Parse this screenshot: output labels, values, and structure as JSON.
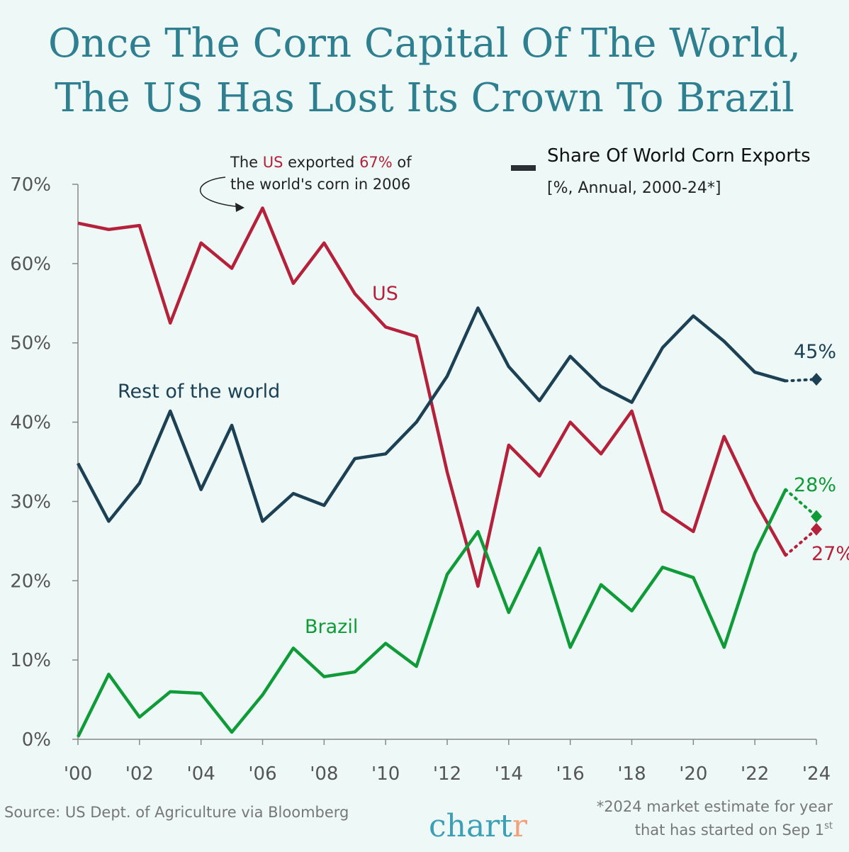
{
  "title_lines": [
    "Once The Corn Capital Of The World,",
    "The US Has Lost Its Crown To Brazil"
  ],
  "legend": {
    "title": "Share Of World Corn Exports",
    "subtitle": "[%, Annual, 2000-24*]"
  },
  "annotation": {
    "line1": [
      {
        "text": "The ",
        "color": "#222222"
      },
      {
        "text": "US",
        "color": "#b5213a"
      },
      {
        "text": " exported ",
        "color": "#222222"
      },
      {
        "text": "67%",
        "color": "#b5213a"
      },
      {
        "text": " of",
        "color": "#222222"
      }
    ],
    "line2": "the world's corn in 2006"
  },
  "footer": {
    "source": "Source: US Dept. of Agriculture via Bloomberg",
    "logo": "chartr",
    "note_line1": "*2024 market estimate for year",
    "note_line2": "that has started on Sep 1",
    "note_sup": "st"
  },
  "chart_data": {
    "type": "line",
    "title": "Share Of World Corn Exports",
    "ylim": [
      0,
      70
    ],
    "xlim": [
      2000,
      2024
    ],
    "grid": false,
    "y_ticks": [
      "0%",
      "10%",
      "20%",
      "30%",
      "40%",
      "50%",
      "60%",
      "70%"
    ],
    "x_ticks": [
      "'00",
      "'02",
      "'04",
      "'06",
      "'08",
      "'10",
      "'12",
      "'14",
      "'16",
      "'18",
      "'20",
      "'22",
      "'24"
    ],
    "x": [
      2000,
      2001,
      2002,
      2003,
      2004,
      2005,
      2006,
      2007,
      2008,
      2009,
      2010,
      2011,
      2012,
      2013,
      2014,
      2015,
      2016,
      2017,
      2018,
      2019,
      2020,
      2021,
      2022,
      2023,
      2024
    ],
    "estimate_year": 2024,
    "series": [
      {
        "name": "US",
        "color": "#b5213a",
        "end_label": "27%",
        "values": [
          65.1,
          64.3,
          64.8,
          52.5,
          62.6,
          59.4,
          67.0,
          57.5,
          62.6,
          56.2,
          52.0,
          50.8,
          33.7,
          19.3,
          37.1,
          33.2,
          40.0,
          36.0,
          41.4,
          28.8,
          26.2,
          38.2,
          30.1,
          23.2,
          26.5
        ]
      },
      {
        "name": "Rest of the world",
        "color": "#1c4154",
        "end_label": "45%",
        "values": [
          34.8,
          27.5,
          32.3,
          41.4,
          31.5,
          39.6,
          27.5,
          31.0,
          29.5,
          35.4,
          36.0,
          40.0,
          45.8,
          54.4,
          47.0,
          42.7,
          48.3,
          44.5,
          42.5,
          49.4,
          53.4,
          50.2,
          46.3,
          45.2,
          45.4
        ]
      },
      {
        "name": "Brazil",
        "color": "#0f9b37",
        "end_label": "28%",
        "values": [
          0.3,
          8.2,
          2.8,
          6.0,
          5.8,
          0.9,
          5.6,
          11.5,
          7.9,
          8.5,
          12.1,
          9.2,
          20.8,
          26.2,
          16.0,
          24.1,
          11.6,
          19.5,
          16.2,
          21.7,
          20.4,
          11.6,
          23.5,
          31.5,
          28.1
        ]
      }
    ]
  }
}
